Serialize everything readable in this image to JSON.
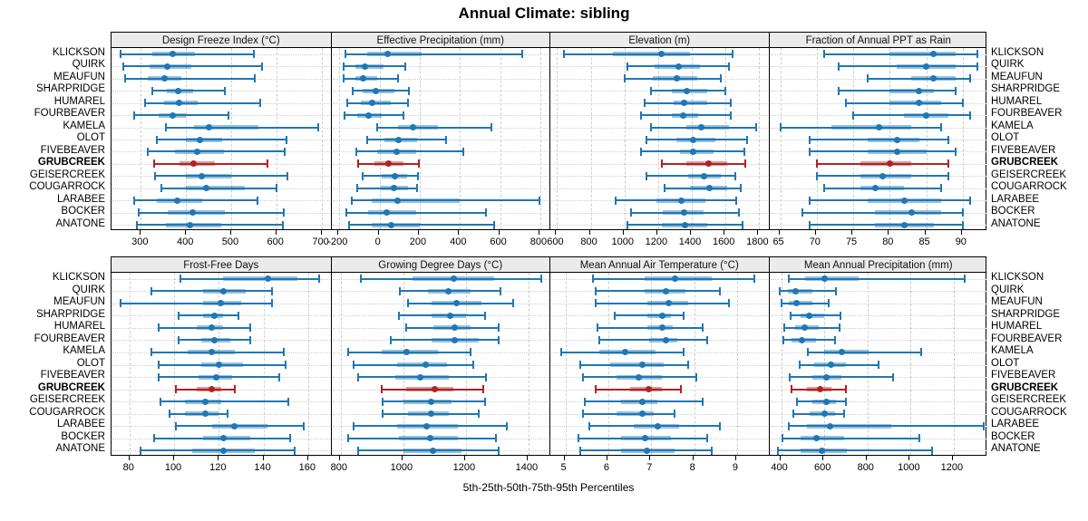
{
  "title": "Annual Climate: sibling",
  "xlabel": "5th-25th-50th-75th-95th Percentiles",
  "colors": {
    "series": "#1f77b4",
    "series_band": "rgba(31,119,180,0.45)",
    "highlight": "#b22222",
    "highlight_band": "rgba(178,34,34,0.45)",
    "header_bg": "#ebebeb",
    "grid": "#cdcdcd",
    "border": "#000000"
  },
  "chart_data": {
    "type": "dotplot-interval",
    "percentile_labels": [
      "5th",
      "25th",
      "50th",
      "75th",
      "95th"
    ],
    "sites": [
      "KLICKSON",
      "QUIRK",
      "MEAUFUN",
      "SHARPRIDGE",
      "HUMAREL",
      "FOURBEAVER",
      "KAMELA",
      "OLOT",
      "FIVEBEAVER",
      "GRUBCREEK",
      "GEISERCREEK",
      "COUGARROCK",
      "LARABEE",
      "BOCKER",
      "ANATONE"
    ],
    "highlight_site": "GRUBCREEK",
    "layout": {
      "rows": 2,
      "cols": 4,
      "grid": "dashed",
      "legend": "none",
      "site_labels": "both-sides"
    },
    "panels": [
      {
        "title": "Design Freeze Index (°C)",
        "row": 0,
        "col": 0,
        "xlim": [
          235,
          720
        ],
        "ticks": [
          300,
          400,
          500,
          600,
          700
        ],
        "values": [
          [
            255,
            325,
            370,
            420,
            550
          ],
          [
            262,
            320,
            358,
            412,
            568
          ],
          [
            266,
            315,
            352,
            390,
            553
          ],
          [
            325,
            358,
            383,
            415,
            486
          ],
          [
            310,
            352,
            385,
            425,
            565
          ],
          [
            286,
            340,
            371,
            400,
            494
          ],
          [
            355,
            418,
            450,
            560,
            693
          ],
          [
            335,
            400,
            430,
            480,
            623
          ],
          [
            315,
            375,
            424,
            485,
            619
          ],
          [
            330,
            385,
            417,
            463,
            580
          ],
          [
            331,
            400,
            434,
            500,
            624
          ],
          [
            346,
            400,
            445,
            530,
            601
          ],
          [
            286,
            335,
            380,
            435,
            559
          ],
          [
            296,
            360,
            414,
            486,
            616
          ],
          [
            291,
            355,
            409,
            479,
            614
          ]
        ]
      },
      {
        "title": "Effective Precipitation (mm)",
        "row": 0,
        "col": 1,
        "xlim": [
          -240,
          850
        ],
        "ticks": [
          -200,
          0,
          200,
          400,
          600,
          800
        ],
        "values": [
          [
            -170,
            -60,
            40,
            210,
            710
          ],
          [
            -180,
            -120,
            -75,
            20,
            130
          ],
          [
            -180,
            -120,
            -80,
            -10,
            90
          ],
          [
            -135,
            -85,
            -20,
            75,
            145
          ],
          [
            -160,
            -95,
            -35,
            55,
            140
          ],
          [
            -175,
            -110,
            -55,
            10,
            120
          ],
          [
            -10,
            90,
            165,
            290,
            555
          ],
          [
            -60,
            25,
            95,
            185,
            330
          ],
          [
            -115,
            -10,
            85,
            180,
            415
          ],
          [
            -105,
            -25,
            45,
            120,
            195
          ],
          [
            -85,
            10,
            75,
            135,
            190
          ],
          [
            -110,
            5,
            70,
            140,
            185
          ],
          [
            -140,
            -40,
            90,
            400,
            795
          ],
          [
            -165,
            -55,
            35,
            180,
            530
          ],
          [
            -150,
            -40,
            60,
            200,
            570
          ]
        ]
      },
      {
        "title": "Elevation (m)",
        "row": 0,
        "col": 2,
        "xlim": [
          560,
          1860
        ],
        "ticks": [
          600,
          800,
          1000,
          1200,
          1400,
          1600,
          1800
        ],
        "values": [
          [
            640,
            930,
            1220,
            1390,
            1640
          ],
          [
            1020,
            1180,
            1320,
            1450,
            1620
          ],
          [
            1000,
            1170,
            1310,
            1430,
            1570
          ],
          [
            1160,
            1280,
            1370,
            1490,
            1600
          ],
          [
            1120,
            1290,
            1355,
            1490,
            1630
          ],
          [
            1100,
            1280,
            1350,
            1440,
            1630
          ],
          [
            1160,
            1370,
            1455,
            1620,
            1780
          ],
          [
            1130,
            1310,
            1410,
            1540,
            1730
          ],
          [
            1100,
            1330,
            1410,
            1530,
            1710
          ],
          [
            1220,
            1370,
            1500,
            1610,
            1720
          ],
          [
            1130,
            1380,
            1475,
            1570,
            1660
          ],
          [
            1240,
            1390,
            1505,
            1610,
            1690
          ],
          [
            950,
            1190,
            1340,
            1480,
            1665
          ],
          [
            1040,
            1230,
            1355,
            1470,
            1680
          ],
          [
            1020,
            1220,
            1360,
            1490,
            1700
          ]
        ]
      },
      {
        "title": "Fraction of Annual PPT as Rain",
        "row": 0,
        "col": 3,
        "xlim": [
          63.5,
          93.5
        ],
        "ticks": [
          65,
          70,
          75,
          80,
          85,
          90
        ],
        "values": [
          [
            71,
            80,
            86,
            89,
            92
          ],
          [
            73,
            81,
            85,
            89,
            92
          ],
          [
            77,
            83,
            86,
            89,
            91
          ],
          [
            73,
            80,
            84,
            86,
            89
          ],
          [
            74,
            80,
            84,
            87,
            90
          ],
          [
            75,
            82,
            85,
            88,
            91
          ],
          [
            65,
            72,
            78.5,
            83,
            87
          ],
          [
            69,
            77,
            81,
            84,
            88
          ],
          [
            69,
            77,
            81,
            85,
            89
          ],
          [
            70,
            76,
            80,
            83,
            88
          ],
          [
            70,
            76,
            79,
            83,
            88
          ],
          [
            71,
            76,
            78,
            82,
            87
          ],
          [
            69,
            77,
            82,
            87,
            91
          ],
          [
            68,
            78,
            83,
            87,
            90
          ],
          [
            69,
            78,
            82,
            86,
            90
          ]
        ]
      },
      {
        "title": "Frost-Free Days",
        "row": 1,
        "col": 0,
        "xlim": [
          72,
          170
        ],
        "ticks": [
          80,
          100,
          120,
          140,
          160
        ],
        "values": [
          [
            103,
            122,
            142,
            155,
            165
          ],
          [
            90,
            113,
            122,
            132,
            144
          ],
          [
            76,
            113,
            121,
            130,
            144
          ],
          [
            102,
            113,
            118,
            122,
            129
          ],
          [
            93,
            110,
            117,
            122,
            134
          ],
          [
            102,
            112,
            118,
            125,
            134
          ],
          [
            90,
            106,
            117,
            127,
            149
          ],
          [
            93,
            112,
            120,
            131,
            150
          ],
          [
            93,
            111,
            119,
            126,
            147
          ],
          [
            101,
            110,
            117,
            121,
            127
          ],
          [
            94,
            105,
            114,
            121,
            151
          ],
          [
            98,
            105,
            114,
            120,
            124
          ],
          [
            101,
            117,
            127,
            142,
            158
          ],
          [
            91,
            113,
            122,
            134,
            152
          ],
          [
            85,
            108,
            122,
            136,
            154
          ]
        ]
      },
      {
        "title": "Growing Degree Days (°C)",
        "row": 1,
        "col": 1,
        "xlim": [
          770,
          1470
        ],
        "ticks": [
          800,
          1000,
          1200,
          1400
        ],
        "values": [
          [
            865,
            1030,
            1160,
            1290,
            1440
          ],
          [
            990,
            1080,
            1145,
            1215,
            1310
          ],
          [
            1015,
            1090,
            1170,
            1250,
            1350
          ],
          [
            985,
            1090,
            1150,
            1200,
            1260
          ],
          [
            1010,
            1095,
            1165,
            1215,
            1305
          ],
          [
            960,
            1090,
            1165,
            1240,
            1305
          ],
          [
            825,
            930,
            1010,
            1110,
            1215
          ],
          [
            840,
            980,
            1070,
            1140,
            1225
          ],
          [
            855,
            975,
            1055,
            1145,
            1265
          ],
          [
            930,
            1010,
            1100,
            1160,
            1255
          ],
          [
            935,
            1000,
            1090,
            1155,
            1260
          ],
          [
            935,
            1015,
            1090,
            1145,
            1240
          ],
          [
            840,
            980,
            1075,
            1175,
            1330
          ],
          [
            825,
            985,
            1085,
            1175,
            1295
          ],
          [
            855,
            1000,
            1095,
            1185,
            1305
          ]
        ]
      },
      {
        "title": "Mean Annual Air Temperature (°C)",
        "row": 1,
        "col": 2,
        "xlim": [
          4.65,
          9.75
        ],
        "ticks": [
          5,
          6,
          7,
          8,
          9
        ],
        "values": [
          [
            5.65,
            6.85,
            7.55,
            8.4,
            9.4
          ],
          [
            5.7,
            6.85,
            7.35,
            7.8,
            8.6
          ],
          [
            5.7,
            6.9,
            7.4,
            7.85,
            8.8
          ],
          [
            6.15,
            6.9,
            7.25,
            7.45,
            7.75
          ],
          [
            5.75,
            6.9,
            7.25,
            7.5,
            8.2
          ],
          [
            5.8,
            6.95,
            7.35,
            7.6,
            8.3
          ],
          [
            4.9,
            5.8,
            6.4,
            7.1,
            7.75
          ],
          [
            5.35,
            6.05,
            6.8,
            7.3,
            7.85
          ],
          [
            5.4,
            6.2,
            6.7,
            7.25,
            8.05
          ],
          [
            5.7,
            6.5,
            6.95,
            7.25,
            7.7
          ],
          [
            5.45,
            6.3,
            6.8,
            7.15,
            8.2
          ],
          [
            5.4,
            6.2,
            6.8,
            7.05,
            7.55
          ],
          [
            5.55,
            6.6,
            7.15,
            7.65,
            8.6
          ],
          [
            5.3,
            6.3,
            6.85,
            7.45,
            8.3
          ],
          [
            5.35,
            6.3,
            6.9,
            7.55,
            8.4
          ]
        ]
      },
      {
        "title": "Mean Annual Precipitation (mm)",
        "row": 1,
        "col": 3,
        "xlim": [
          345,
          1360
        ],
        "ticks": [
          400,
          600,
          800,
          1000,
          1200
        ],
        "values": [
          [
            435,
            510,
            600,
            760,
            1250
          ],
          [
            395,
            430,
            465,
            545,
            655
          ],
          [
            400,
            435,
            470,
            545,
            620
          ],
          [
            445,
            490,
            530,
            600,
            675
          ],
          [
            415,
            465,
            510,
            575,
            670
          ],
          [
            410,
            450,
            495,
            560,
            650
          ],
          [
            525,
            600,
            680,
            805,
            1050
          ],
          [
            485,
            555,
            630,
            700,
            850
          ],
          [
            440,
            545,
            610,
            680,
            920
          ],
          [
            450,
            520,
            580,
            635,
            700
          ],
          [
            475,
            545,
            610,
            655,
            700
          ],
          [
            455,
            530,
            600,
            650,
            690
          ],
          [
            435,
            520,
            625,
            910,
            1340
          ],
          [
            405,
            490,
            565,
            690,
            1040
          ],
          [
            385,
            490,
            590,
            705,
            1100
          ]
        ]
      }
    ]
  }
}
